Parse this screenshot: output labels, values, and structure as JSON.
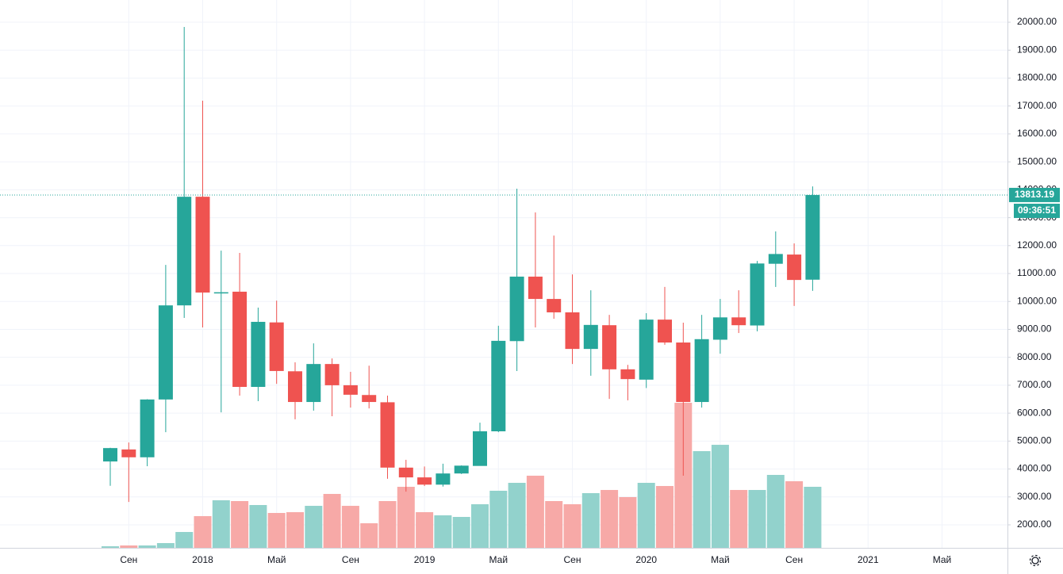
{
  "chart_data": {
    "type": "candlestick",
    "categories": [
      null,
      "Сен",
      null,
      null,
      null,
      "2018",
      null,
      null,
      null,
      "Май",
      null,
      null,
      null,
      "Сен",
      null,
      null,
      null,
      "2019",
      null,
      null,
      null,
      "Май",
      null,
      null,
      null,
      "Сен",
      null,
      null,
      null,
      "2020",
      null,
      null,
      null,
      "Май",
      null,
      null,
      null,
      "Сен",
      null
    ],
    "extra_categories": [
      null,
      null,
      "2021",
      null,
      null,
      null,
      "Май"
    ],
    "open": [
      4270,
      4700,
      4420,
      6490,
      9860,
      13750,
      10300,
      10350,
      6940,
      9250,
      7500,
      6400,
      7760,
      7000,
      6650,
      6390,
      4050,
      3700,
      3440,
      3840,
      4110,
      5350,
      8580,
      10890,
      10090,
      9610,
      8300,
      9150,
      7570,
      7200,
      9350,
      8530,
      6400,
      8630,
      9430,
      9140,
      11350,
      11680,
      10780
    ],
    "high": [
      4760,
      4950,
      6500,
      11310,
      19830,
      17190,
      11820,
      11740,
      9780,
      10030,
      7820,
      8500,
      7960,
      7480,
      7700,
      6630,
      4330,
      4090,
      4190,
      4130,
      5660,
      9130,
      14040,
      13190,
      12360,
      10970,
      10400,
      9520,
      7730,
      9580,
      10520,
      9240,
      9520,
      10090,
      10400,
      11450,
      12510,
      12080,
      14120
    ],
    "low": [
      3400,
      2820,
      4100,
      5320,
      9410,
      9070,
      6030,
      6630,
      6430,
      7050,
      5780,
      6090,
      5890,
      6200,
      6170,
      3650,
      3190,
      3390,
      3370,
      3820,
      4130,
      5320,
      7510,
      9070,
      9380,
      7760,
      7340,
      6510,
      6460,
      6900,
      8450,
      3760,
      6200,
      8130,
      8870,
      8930,
      10520,
      9840,
      10380
    ],
    "close": [
      4750,
      4420,
      6490,
      9860,
      13750,
      10320,
      10330,
      6940,
      9270,
      7510,
      6400,
      7760,
      7000,
      6660,
      6400,
      4050,
      3700,
      3440,
      3840,
      4120,
      5350,
      8590,
      10890,
      10090,
      9610,
      8300,
      9160,
      7570,
      7220,
      9350,
      8530,
      6400,
      8650,
      9430,
      9150,
      11360,
      11700,
      10770,
      13813.19
    ],
    "volume": [
      1233,
      1262,
      1262,
      1347,
      1745,
      2312,
      2880,
      2852,
      2710,
      2426,
      2454,
      2681,
      3107,
      2681,
      2057,
      2852,
      3363,
      2454,
      2341,
      2284,
      2738,
      3221,
      3505,
      3760,
      2852,
      2738,
      3136,
      3249,
      2994,
      3505,
      3391,
      6372,
      4640,
      4867,
      3249,
      3249,
      3789,
      3562,
      3363
    ],
    "up_color": "#26a69a",
    "down_color": "#ef5350",
    "volume_up_color": "#92d2cc",
    "volume_down_color": "#f7a9a7",
    "countdown": "09:36:51",
    "ylim": [
      1177,
      20796
    ],
    "yticks": [
      {
        "value": 2000,
        "label": "2000.00"
      },
      {
        "value": 3000,
        "label": "3000.00"
      },
      {
        "value": 4000,
        "label": "4000.00"
      },
      {
        "value": 5000,
        "label": "5000.00"
      },
      {
        "value": 6000,
        "label": "6000.00"
      },
      {
        "value": 7000,
        "label": "7000.00"
      },
      {
        "value": 8000,
        "label": "8000.00"
      },
      {
        "value": 9000,
        "label": "9000.00"
      },
      {
        "value": 10000,
        "label": "10000.00"
      },
      {
        "value": 11000,
        "label": "11000.00"
      },
      {
        "value": 12000,
        "label": "12000.00"
      },
      {
        "value": 13000,
        "label": "13000.00"
      },
      {
        "value": 14000,
        "label": "14000.00"
      },
      {
        "value": 15000,
        "label": "15000.00"
      },
      {
        "value": 16000,
        "label": "16000.00"
      },
      {
        "value": 17000,
        "label": "17000.00"
      },
      {
        "value": 18000,
        "label": "18000.00"
      },
      {
        "value": 19000,
        "label": "19000.00"
      },
      {
        "value": 20000,
        "label": "20000.00"
      }
    ],
    "grid": true
  }
}
